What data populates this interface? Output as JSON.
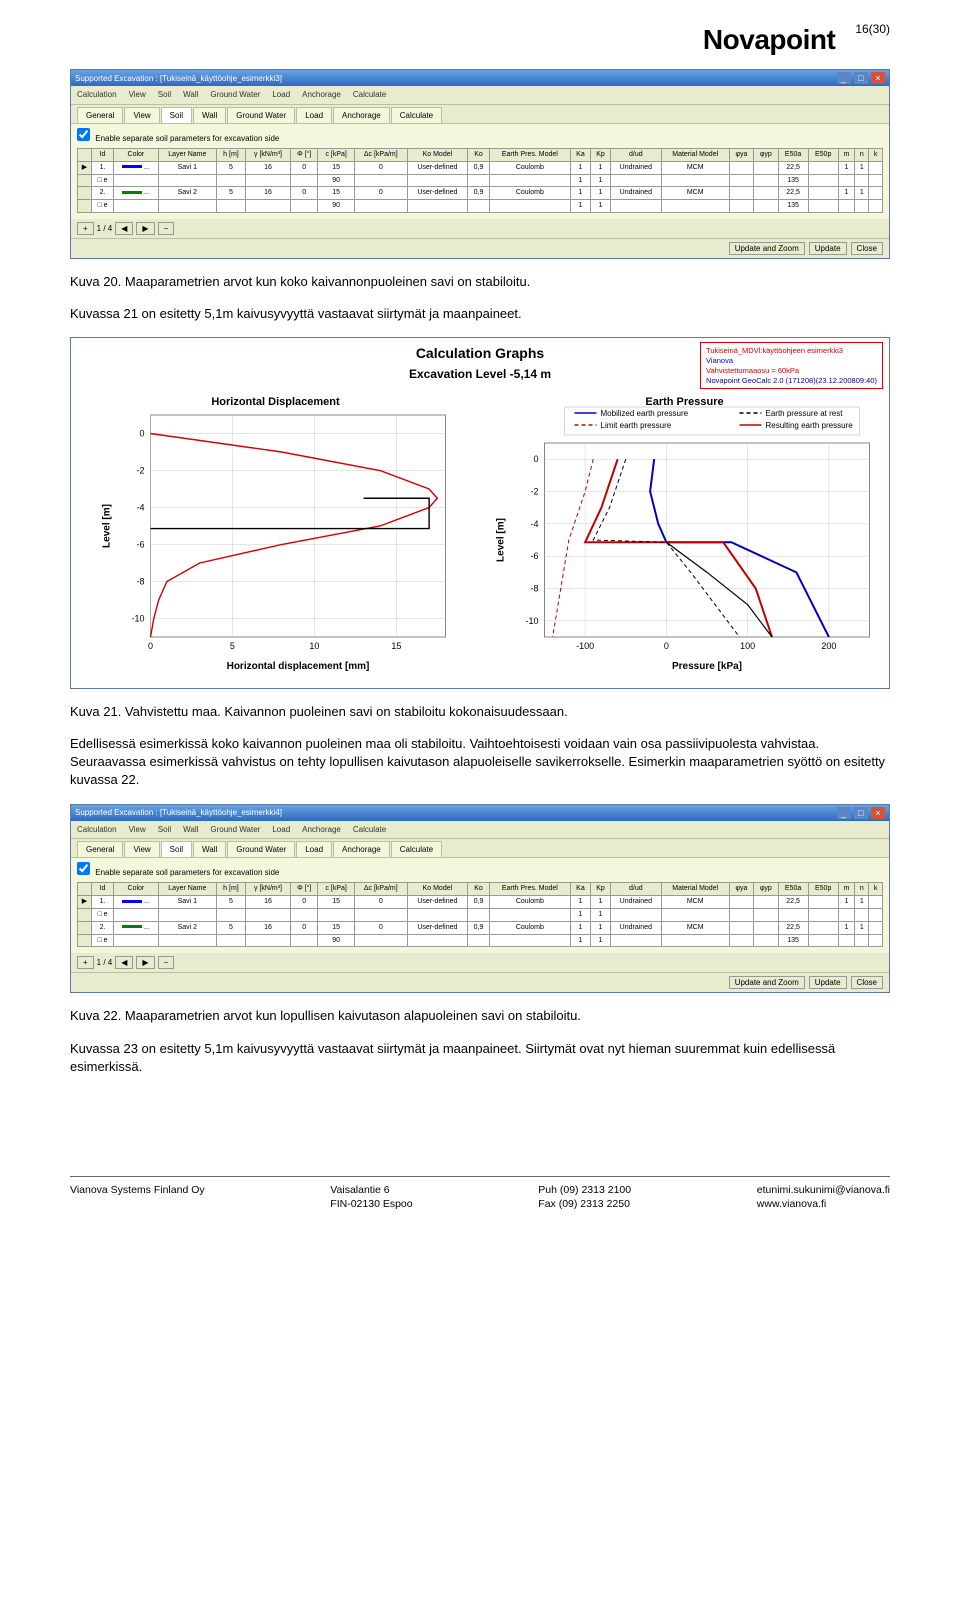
{
  "header": {
    "logo": "Novapoint",
    "pageNum": "16(30)"
  },
  "para1": "Kuva 20. Maaparametrien arvot kun koko kaivannonpuoleinen savi on stabiloitu.",
  "para2": "Kuvassa 21 on esitetty 5,1m kaivusyvyyttä vastaavat siirtymät ja maanpaineet.",
  "para3": "Kuva 21. Vahvistettu maa. Kaivannon puoleinen savi on stabiloitu kokonaisuudessaan.",
  "para4": "Edellisessä esimerkissä koko kaivannon puoleinen maa oli stabiloitu. Vaihtoehtoisesti voidaan vain osa passiivipuolesta vahvistaa. Seuraavassa esimerkissä vahvistus on tehty lopullisen kaivutason alapuoleiselle savikerrokselle. Esimerkin maaparametrien syöttö on esitetty kuvassa 22.",
  "para5": "Kuva 22. Maaparametrien arvot kun lopullisen kaivutason alapuoleinen savi on stabiloitu.",
  "para6": "Kuvassa 23 on esitetty 5,1m kaivusyvyyttä vastaavat siirtymät ja maanpaineet. Siirtymät ovat nyt hieman suuremmat kuin edellisessä esimerkissä.",
  "window1": {
    "title": "Supported Excavation : [Tukiseinä_käyttöohje_esimerkki3]",
    "menus": [
      "Calculation",
      "View",
      "Soil",
      "Wall",
      "Ground Water",
      "Load",
      "Anchorage",
      "Calculate"
    ],
    "tabs": [
      "General",
      "View",
      "Soil",
      "Wall",
      "Ground Water",
      "Load",
      "Anchorage",
      "Calculate"
    ],
    "activeTab": 2,
    "checkbox": "Enable separate soil parameters for excavation side",
    "columns": [
      "Id",
      "Color",
      "Layer Name",
      "h [m]",
      "γ [kN/m³]",
      "Φ [°]",
      "c [kPa]",
      "Δc [kPa/m]",
      "Ko Model",
      "Ko",
      "Earth Pres. Model",
      "Ka",
      "Kp",
      "d/ud",
      "Material Model",
      "φya",
      "φyp",
      "E50a",
      "E50p",
      "m",
      "n",
      "k"
    ],
    "rows": [
      {
        "head": "▶",
        "id": "1.",
        "color": "#0000ff",
        "name": "Savi 1",
        "h": "5",
        "g": "16",
        "phi": "0",
        "c": "15",
        "dc": "0",
        "komodel": "User-defined",
        "ko": "0,9",
        "ep": "Coulomb",
        "ka": "1",
        "kp": "1",
        "dud": "Undrained",
        "mat": "MCM",
        "phiya": "",
        "phiyp": "",
        "e50a": "22,5",
        "e50p": "",
        "m": "1",
        "n": "1",
        "k": ""
      },
      {
        "head": "",
        "id": "□ e",
        "color": "",
        "name": "",
        "h": "",
        "g": "",
        "phi": "",
        "c": "90",
        "dc": "",
        "komodel": "",
        "ko": "",
        "ep": "",
        "ka": "1",
        "kp": "1",
        "dud": "",
        "mat": "",
        "phiya": "",
        "phiyp": "",
        "e50a": "135",
        "e50p": "",
        "m": "",
        "n": "",
        "k": ""
      },
      {
        "head": "",
        "id": "2.",
        "color": "#008000",
        "name": "Savi 2",
        "h": "5",
        "g": "16",
        "phi": "0",
        "c": "15",
        "dc": "0",
        "komodel": "User-defined",
        "ko": "0,9",
        "ep": "Coulomb",
        "ka": "1",
        "kp": "1",
        "dud": "Undrained",
        "mat": "MCM",
        "phiya": "",
        "phiyp": "",
        "e50a": "22,5",
        "e50p": "",
        "m": "1",
        "n": "1",
        "k": ""
      },
      {
        "head": "",
        "id": "□ e",
        "color": "",
        "name": "",
        "h": "",
        "g": "",
        "phi": "",
        "c": "90",
        "dc": "",
        "komodel": "",
        "ko": "",
        "ep": "",
        "ka": "1",
        "kp": "1",
        "dud": "",
        "mat": "",
        "phiya": "",
        "phiyp": "",
        "e50a": "135",
        "e50p": "",
        "m": "",
        "n": "",
        "k": ""
      }
    ],
    "pager": "1 / 4",
    "buttons": [
      "Update and Zoom",
      "Update",
      "Close"
    ]
  },
  "graphs": {
    "title": "Calculation Graphs",
    "subtitle": "Excavation Level -5,14 m",
    "info": {
      "l1": "Tukiseinä_MDVl:käyttöohjeen esimerkki3",
      "l2": "Vianova",
      "l3": "Vahvistettumaaosu = 60kPa",
      "l4": "Novapoint GeoCalc 2.0 (171208)(23.12.200809:40)"
    },
    "left": {
      "title": "Horizontal Displacement",
      "xlabel": "Horizontal displacement [mm]",
      "ylabel": "Level [m]",
      "yticks": [
        0,
        -2,
        -4,
        -6,
        -8,
        -10
      ],
      "xticks": [
        0,
        5,
        10,
        15
      ],
      "xlim": [
        0,
        18
      ],
      "ylim": [
        -11,
        1
      ],
      "curves": {
        "red": {
          "color": "#d00000",
          "dash": "none",
          "pts": [
            [
              0,
              0
            ],
            [
              8,
              -1
            ],
            [
              14,
              -2
            ],
            [
              17,
              -3
            ],
            [
              17.5,
              -3.5
            ],
            [
              17,
              -4
            ],
            [
              14,
              -5
            ],
            [
              8,
              -6
            ],
            [
              3,
              -7
            ],
            [
              1,
              -8
            ],
            [
              0.5,
              -9
            ],
            [
              0.2,
              -10
            ],
            [
              0,
              -11
            ]
          ]
        },
        "black": {
          "color": "#000000",
          "dash": "none",
          "pts": [
            [
              0,
              -5.14
            ],
            [
              17,
              -5.14
            ],
            [
              17,
              -3.5
            ],
            [
              13,
              -3.5
            ]
          ]
        }
      }
    },
    "right": {
      "title": "Earth Pressure",
      "xlabel": "Pressure [kPa]",
      "ylabel": "Level [m]",
      "legend": [
        {
          "label": "Mobilized earth pressure",
          "color": "#0000c0",
          "dash": "none"
        },
        {
          "label": "Earth pressure at rest",
          "color": "#000000",
          "dash": "4,3"
        },
        {
          "label": "Limit earth pressure",
          "color": "#c00000",
          "dash": "4,3"
        },
        {
          "label": "Resulting earth pressure",
          "color": "#c00000",
          "dash": "none"
        }
      ],
      "yticks": [
        0,
        -2,
        -4,
        -6,
        -8,
        -10
      ],
      "xticks": [
        -100,
        0,
        100,
        200
      ],
      "xlim": [
        -150,
        250
      ],
      "ylim": [
        -11,
        1
      ],
      "curves": {
        "blue": {
          "color": "#0000c0",
          "width": 2,
          "pts": [
            [
              -15,
              0
            ],
            [
              -20,
              -2
            ],
            [
              -10,
              -4
            ],
            [
              0,
              -5.14
            ],
            [
              80,
              -5.14
            ],
            [
              160,
              -7
            ],
            [
              180,
              -9
            ],
            [
              200,
              -11
            ]
          ]
        },
        "red_solid": {
          "color": "#c00000",
          "width": 2,
          "pts": [
            [
              -60,
              0
            ],
            [
              -80,
              -3
            ],
            [
              -100,
              -5.14
            ],
            [
              70,
              -5.14
            ],
            [
              110,
              -8
            ],
            [
              130,
              -11
            ]
          ]
        },
        "red_dash": {
          "color": "#c00000",
          "width": 1,
          "dash": "4,3",
          "pts": [
            [
              -90,
              0
            ],
            [
              -100,
              -2
            ],
            [
              -120,
              -5
            ],
            [
              -130,
              -8
            ],
            [
              -140,
              -11
            ]
          ]
        },
        "black_dash": {
          "color": "#000000",
          "width": 1,
          "dash": "4,3",
          "pts": [
            [
              -50,
              0
            ],
            [
              -70,
              -3
            ],
            [
              -90,
              -5
            ],
            [
              0,
              -5.14
            ],
            [
              30,
              -7
            ],
            [
              60,
              -9
            ],
            [
              90,
              -11
            ]
          ]
        },
        "black_solid": {
          "color": "#000000",
          "width": 1.2,
          "pts": [
            [
              0,
              -5.14
            ],
            [
              50,
              -7
            ],
            [
              100,
              -9
            ],
            [
              130,
              -11
            ]
          ]
        }
      }
    }
  },
  "window2": {
    "title": "Supported Excavation : [Tukiseinä_käyttöohje_esimerkki4]",
    "rows": [
      {
        "head": "▶",
        "id": "1.",
        "color": "#0000ff",
        "name": "Savi 1",
        "h": "5",
        "g": "16",
        "phi": "0",
        "c": "15",
        "dc": "0",
        "komodel": "User-defined",
        "ko": "0,9",
        "ep": "Coulomb",
        "ka": "1",
        "kp": "1",
        "dud": "Undrained",
        "mat": "MCM",
        "phiya": "",
        "phiyp": "",
        "e50a": "22,5",
        "e50p": "",
        "m": "1",
        "n": "1",
        "k": ""
      },
      {
        "head": "",
        "id": "□ e",
        "color": "",
        "name": "",
        "h": "",
        "g": "",
        "phi": "",
        "c": "",
        "dc": "",
        "komodel": "",
        "ko": "",
        "ep": "",
        "ka": "1",
        "kp": "1",
        "dud": "",
        "mat": "",
        "phiya": "",
        "phiyp": "",
        "e50a": "",
        "e50p": "",
        "m": "",
        "n": "",
        "k": ""
      },
      {
        "head": "",
        "id": "2.",
        "color": "#008000",
        "name": "Savi 2",
        "h": "5",
        "g": "16",
        "phi": "0",
        "c": "15",
        "dc": "0",
        "komodel": "User-defined",
        "ko": "0,9",
        "ep": "Coulomb",
        "ka": "1",
        "kp": "1",
        "dud": "Undrained",
        "mat": "MCM",
        "phiya": "",
        "phiyp": "",
        "e50a": "22,5",
        "e50p": "",
        "m": "1",
        "n": "1",
        "k": ""
      },
      {
        "head": "",
        "id": "□ e",
        "color": "",
        "name": "",
        "h": "",
        "g": "",
        "phi": "",
        "c": "90",
        "dc": "",
        "komodel": "",
        "ko": "",
        "ep": "",
        "ka": "1",
        "kp": "1",
        "dud": "",
        "mat": "",
        "phiya": "",
        "phiyp": "",
        "e50a": "135",
        "e50p": "",
        "m": "",
        "n": "",
        "k": ""
      }
    ]
  },
  "footer": {
    "c1": [
      "Vianova Systems Finland Oy"
    ],
    "c2": [
      "Vaisalantie 6",
      "FIN-02130 Espoo"
    ],
    "c3": [
      "Puh  (09) 2313 2100",
      "Fax  (09) 2313 2250"
    ],
    "c4": [
      "etunimi.sukunimi@vianova.fi",
      "www.vianova.fi"
    ]
  }
}
